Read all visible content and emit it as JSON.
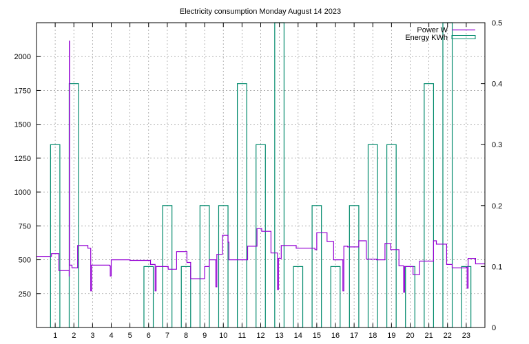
{
  "chart_data": {
    "type": "line",
    "title": "Electricity consumption Monday August 14 2023",
    "xlabel": "",
    "ylabel": "",
    "xlim": [
      0,
      24
    ],
    "ylim": [
      0,
      2250
    ],
    "y2lim": [
      0,
      0.5
    ],
    "grid": true,
    "legend_position": "top-right",
    "x_ticks": [
      "1",
      "2",
      "3",
      "4",
      "5",
      "6",
      "7",
      "8",
      "9",
      "10",
      "11",
      "12",
      "13",
      "14",
      "15",
      "16",
      "17",
      "18",
      "19",
      "20",
      "21",
      "22",
      "23"
    ],
    "y_ticks": [
      "250",
      "500",
      "750",
      "1000",
      "1250",
      "1500",
      "1750",
      "2000"
    ],
    "y2_ticks": [
      "0",
      "0.1",
      "0.2",
      "0.3",
      "0.4",
      "0.5"
    ],
    "series": [
      {
        "name": "Power W",
        "axis": "left",
        "style": "steps",
        "color": "#9400d3",
        "points": [
          [
            0.0,
            525
          ],
          [
            0.8,
            545
          ],
          [
            1.2,
            420
          ],
          [
            1.75,
            380
          ],
          [
            1.76,
            2115
          ],
          [
            1.77,
            460
          ],
          [
            1.9,
            440
          ],
          [
            2.2,
            605
          ],
          [
            2.75,
            585
          ],
          [
            2.9,
            270
          ],
          [
            2.95,
            460
          ],
          [
            3.9,
            455
          ],
          [
            3.95,
            380
          ],
          [
            4.0,
            500
          ],
          [
            5.0,
            495
          ],
          [
            6.1,
            465
          ],
          [
            6.35,
            270
          ],
          [
            6.4,
            450
          ],
          [
            7.0,
            450
          ],
          [
            7.05,
            430
          ],
          [
            7.5,
            560
          ],
          [
            8.05,
            480
          ],
          [
            8.25,
            360
          ],
          [
            9.0,
            450
          ],
          [
            9.25,
            500
          ],
          [
            9.6,
            300
          ],
          [
            9.65,
            540
          ],
          [
            9.95,
            680
          ],
          [
            10.25,
            630
          ],
          [
            10.3,
            500
          ],
          [
            11.3,
            600
          ],
          [
            11.8,
            730
          ],
          [
            12.05,
            710
          ],
          [
            12.55,
            550
          ],
          [
            12.9,
            280
          ],
          [
            12.95,
            510
          ],
          [
            13.1,
            605
          ],
          [
            13.9,
            585
          ],
          [
            14.9,
            575
          ],
          [
            15.0,
            700
          ],
          [
            15.55,
            635
          ],
          [
            15.9,
            500
          ],
          [
            16.4,
            270
          ],
          [
            16.45,
            600
          ],
          [
            16.65,
            595
          ],
          [
            17.25,
            640
          ],
          [
            17.65,
            505
          ],
          [
            18.2,
            500
          ],
          [
            18.65,
            620
          ],
          [
            18.95,
            575
          ],
          [
            19.4,
            455
          ],
          [
            19.65,
            260
          ],
          [
            19.7,
            450
          ],
          [
            20.15,
            390
          ],
          [
            20.5,
            490
          ],
          [
            21.25,
            640
          ],
          [
            21.4,
            615
          ],
          [
            21.95,
            465
          ],
          [
            22.25,
            440
          ],
          [
            23.0,
            445
          ],
          [
            23.05,
            290
          ],
          [
            23.1,
            510
          ],
          [
            23.5,
            470
          ],
          [
            24.0,
            470
          ]
        ]
      },
      {
        "name": "Energy KWh",
        "axis": "right",
        "style": "boxes",
        "color": "#00896b",
        "x": [
          0.75,
          1.75,
          5.75,
          6.75,
          7.75,
          8.75,
          9.75,
          10.75,
          11.75,
          12.75,
          13.75,
          14.75,
          15.75,
          16.75,
          17.75,
          18.75,
          19.75,
          20.75,
          21.75,
          22.75
        ],
        "values": [
          0.3,
          0.4,
          0.1,
          0.2,
          0.1,
          0.2,
          0.2,
          0.4,
          0.3,
          0.5,
          0.1,
          0.2,
          0.1,
          0.2,
          0.3,
          0.3,
          0.1,
          0.4,
          0.5,
          0.1
        ],
        "width": 0.5
      }
    ]
  }
}
